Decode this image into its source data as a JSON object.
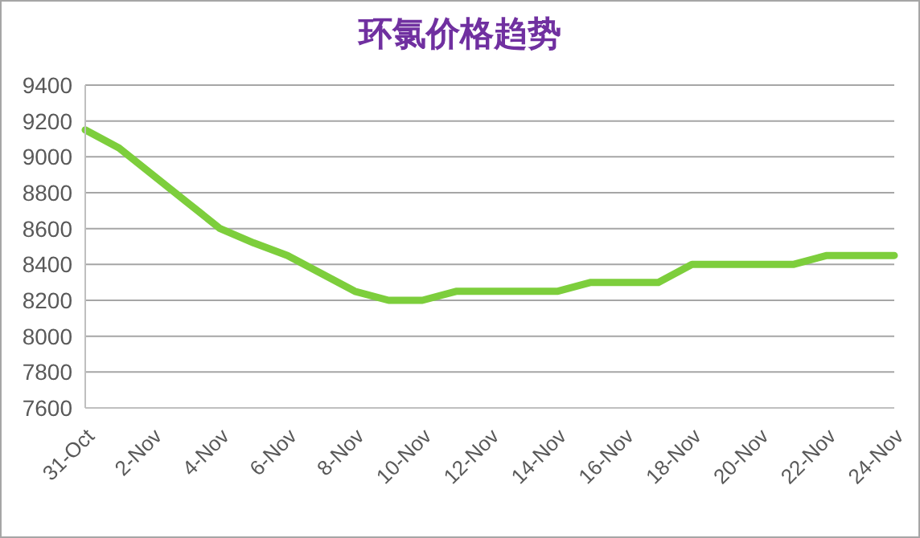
{
  "chart_data": {
    "type": "line",
    "title": "环氯价格趋势",
    "categories": [
      "31-Oct",
      null,
      "2-Nov",
      null,
      "4-Nov",
      null,
      "6-Nov",
      null,
      "8-Nov",
      null,
      "10-Nov",
      null,
      "12-Nov",
      null,
      "14-Nov",
      null,
      "16-Nov",
      null,
      "18-Nov",
      null,
      "20-Nov",
      null,
      "22-Nov",
      null,
      "24-Nov"
    ],
    "series": [
      {
        "color": "#7dce3c",
        "values": [
          9150,
          9050,
          8900,
          8750,
          8600,
          8520,
          8450,
          8350,
          8250,
          8200,
          8200,
          8250,
          8250,
          8250,
          8250,
          8300,
          8300,
          8300,
          8400,
          8400,
          8400,
          8400,
          8450,
          8450,
          8450
        ]
      }
    ],
    "ylim": [
      7600,
      9400
    ],
    "yticks": [
      7600,
      7800,
      8000,
      8200,
      8400,
      8600,
      8800,
      9000,
      9200,
      9400
    ],
    "grid": "y",
    "legend": false,
    "marker": "none",
    "line_style": "solid"
  }
}
